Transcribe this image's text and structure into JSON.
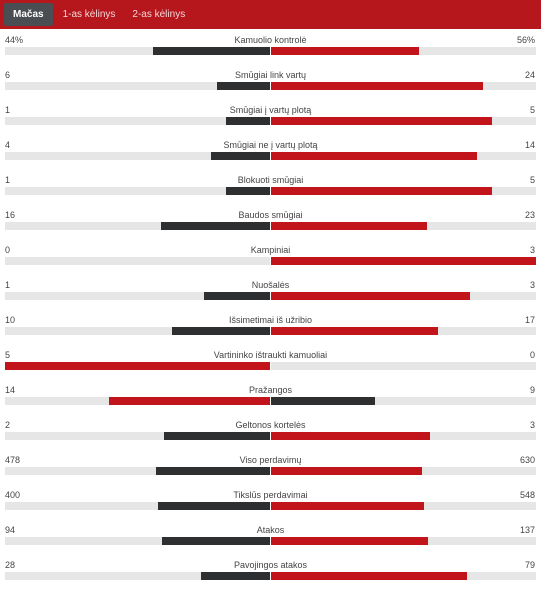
{
  "tabs": [
    {
      "label": "Mačas",
      "active": true
    },
    {
      "label": "1-as kėlinys",
      "active": false
    },
    {
      "label": "2-as kėlinys",
      "active": false
    }
  ],
  "colors": {
    "leading": "#c2141b",
    "trailing": "#2e2f31",
    "track": "#e6e6e6",
    "header": "#b5171d"
  },
  "stats": [
    {
      "label": "Kamuolio kontrolė",
      "home": "44%",
      "away": "56%",
      "home_value": 44,
      "away_value": 56
    },
    {
      "label": "Smūgiai link vartų",
      "home": "6",
      "away": "24",
      "home_value": 6,
      "away_value": 24
    },
    {
      "label": "Smūgiai į vartų plotą",
      "home": "1",
      "away": "5",
      "home_value": 1,
      "away_value": 5
    },
    {
      "label": "Smūgiai ne į vartų plotą",
      "home": "4",
      "away": "14",
      "home_value": 4,
      "away_value": 14
    },
    {
      "label": "Blokuoti smūgiai",
      "home": "1",
      "away": "5",
      "home_value": 1,
      "away_value": 5
    },
    {
      "label": "Baudos smūgiai",
      "home": "16",
      "away": "23",
      "home_value": 16,
      "away_value": 23
    },
    {
      "label": "Kampiniai",
      "home": "0",
      "away": "3",
      "home_value": 0,
      "away_value": 3
    },
    {
      "label": "Nuošalės",
      "home": "1",
      "away": "3",
      "home_value": 1,
      "away_value": 3
    },
    {
      "label": "Išsimetimai iš užribio",
      "home": "10",
      "away": "17",
      "home_value": 10,
      "away_value": 17
    },
    {
      "label": "Vartininko ištraukti kamuoliai",
      "home": "5",
      "away": "0",
      "home_value": 5,
      "away_value": 0
    },
    {
      "label": "Pražangos",
      "home": "14",
      "away": "9",
      "home_value": 14,
      "away_value": 9
    },
    {
      "label": "Geltonos kortelės",
      "home": "2",
      "away": "3",
      "home_value": 2,
      "away_value": 3
    },
    {
      "label": "Viso perdavimų",
      "home": "478",
      "away": "630",
      "home_value": 478,
      "away_value": 630
    },
    {
      "label": "Tikslūs perdavimai",
      "home": "400",
      "away": "548",
      "home_value": 400,
      "away_value": 548
    },
    {
      "label": "Atakos",
      "home": "94",
      "away": "137",
      "home_value": 94,
      "away_value": 137
    },
    {
      "label": "Pavojingos atakos",
      "home": "28",
      "away": "79",
      "home_value": 28,
      "away_value": 79
    }
  ]
}
